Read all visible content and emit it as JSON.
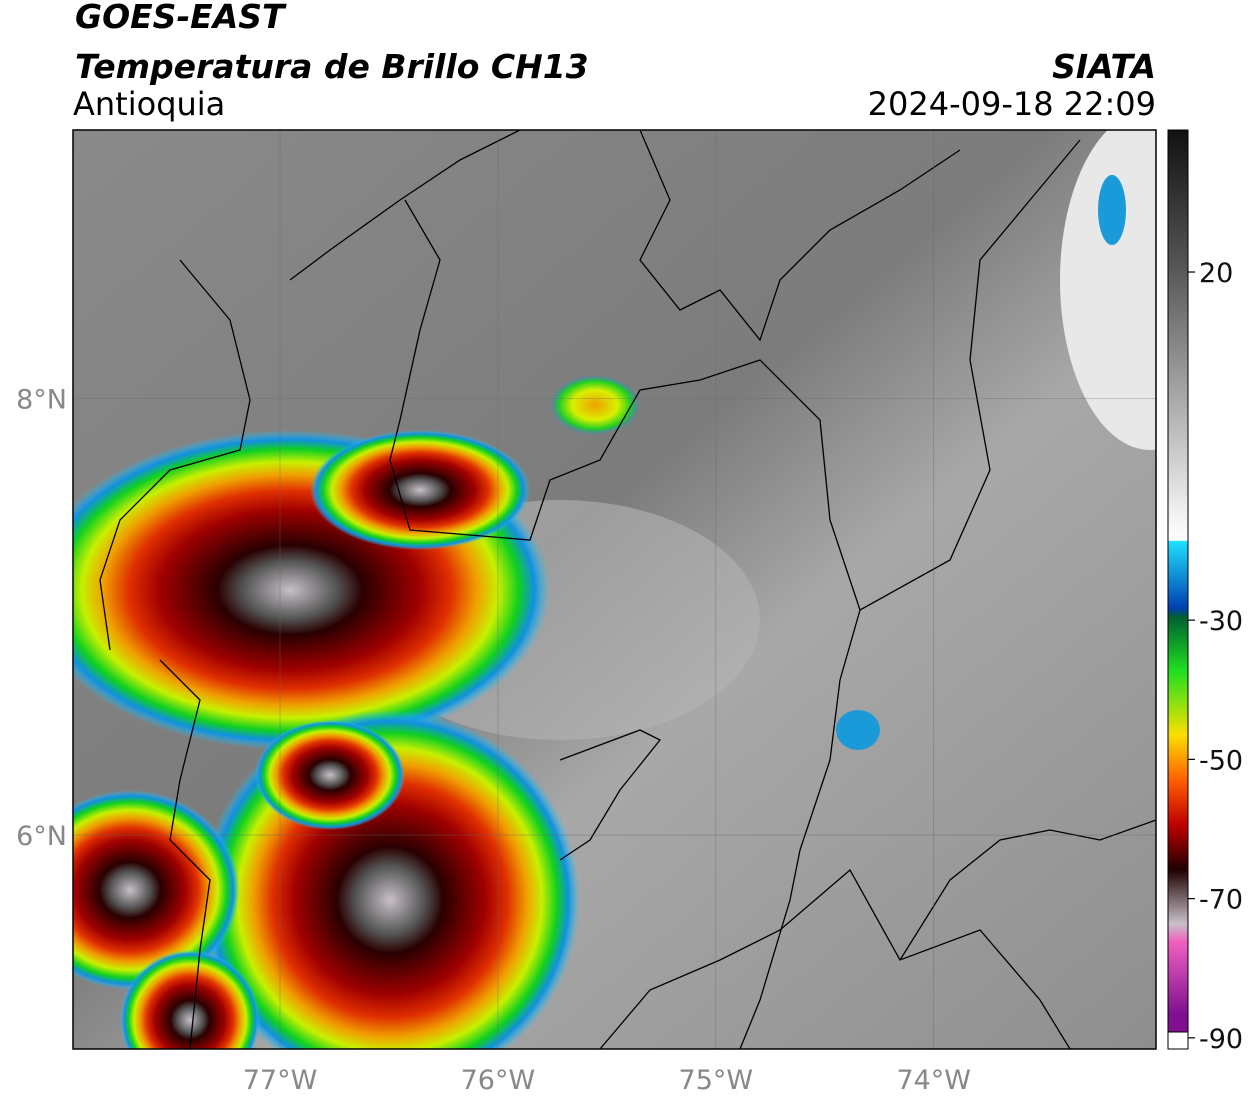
{
  "header": {
    "title": "GOES-EAST",
    "subtitle": "Temperatura de Brillo CH13",
    "region": "Antioquia",
    "source": "SIATA",
    "datetime": "2024-09-18 22:09"
  },
  "map": {
    "xlim": [
      -77.95,
      -72.98
    ],
    "ylim": [
      5.02,
      9.23
    ],
    "xticks": [
      {
        "value": -77,
        "label": "77°W"
      },
      {
        "value": -76,
        "label": "76°W"
      },
      {
        "value": -75,
        "label": "75°W"
      },
      {
        "value": -74,
        "label": "74°W"
      }
    ],
    "yticks": [
      {
        "value": 8,
        "label": "8°N"
      },
      {
        "value": 6,
        "label": "6°N"
      }
    ],
    "grid": true
  },
  "colorbar": {
    "lim": [
      -91.6,
      40.4
    ],
    "ticks": [
      20,
      -30,
      -50,
      -70,
      -90
    ]
  }
}
